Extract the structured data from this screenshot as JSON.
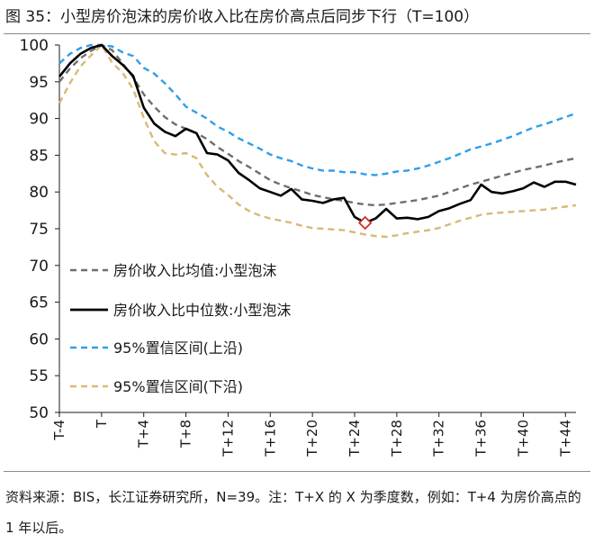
{
  "title": "图 35：小型房价泡沫的房价收入比在房价高点后同步下行（T=100）",
  "source_note": "资料来源：BIS，长江证券研究所，N=39。注：T+X 的 X 为季度数，例如：T+4 为房价高点的 1 年以后。",
  "chart_data": {
    "type": "line",
    "title": "图 35：小型房价泡沫的房价收入比在房价高点后同步下行（T=100）",
    "xlabel": "",
    "ylabel": "",
    "ylim": [
      50,
      100
    ],
    "yticks": [
      50,
      55,
      60,
      65,
      70,
      75,
      80,
      85,
      90,
      95,
      100
    ],
    "xlim": [
      -4,
      45
    ],
    "xticks": [
      -4,
      0,
      4,
      8,
      12,
      16,
      20,
      24,
      28,
      32,
      36,
      40,
      44
    ],
    "xtick_labels": [
      "T-4",
      "T",
      "T+4",
      "T+8",
      "T+12",
      "T+16",
      "T+20",
      "T+24",
      "T+28",
      "T+32",
      "T+36",
      "T+40",
      "T+44"
    ],
    "grid": false,
    "legend_position": "left-middle",
    "x": [
      -4,
      -3,
      -2,
      -1,
      0,
      1,
      2,
      3,
      4,
      5,
      6,
      7,
      8,
      9,
      10,
      11,
      12,
      13,
      14,
      15,
      16,
      17,
      18,
      19,
      20,
      21,
      22,
      23,
      24,
      25,
      26,
      27,
      28,
      29,
      30,
      31,
      32,
      33,
      34,
      35,
      36,
      37,
      38,
      39,
      40,
      41,
      42,
      43,
      44,
      45
    ],
    "series": [
      {
        "name": "房价收入比均值:小型泡沫",
        "color": "#6e6e6e",
        "style": "dashed",
        "values": [
          95,
          96.8,
          98.2,
          99.2,
          100,
          99.3,
          97.5,
          95.6,
          93.3,
          91.6,
          90.2,
          89.2,
          88.6,
          88,
          87.2,
          86.1,
          85.2,
          84.2,
          83.4,
          82.5,
          81.6,
          81,
          80.5,
          80.1,
          79.6,
          79.3,
          79,
          78.8,
          78.5,
          78.3,
          78.2,
          78.3,
          78.5,
          78.7,
          78.9,
          79.2,
          79.5,
          80,
          80.5,
          81,
          81.4,
          81.8,
          82.2,
          82.6,
          83,
          83.3,
          83.6,
          84,
          84.3,
          84.6
        ]
      },
      {
        "name": "房价收入比中位数:小型泡沫",
        "color": "#000000",
        "style": "solid",
        "values": [
          95.7,
          97.5,
          98.8,
          99.6,
          100,
          98.5,
          97.3,
          95.8,
          91.5,
          89.3,
          88.2,
          87.6,
          88.6,
          88,
          85.3,
          85.1,
          84.3,
          82.6,
          81.6,
          80.5,
          80,
          79.5,
          80.4,
          79,
          78.8,
          78.5,
          79,
          79.2,
          76.6,
          75.8,
          76.4,
          77.7,
          76.4,
          76.5,
          76.3,
          76.6,
          77.4,
          77.8,
          78.4,
          78.9,
          81,
          80,
          79.8,
          80.1,
          80.5,
          81.3,
          80.7,
          81.4,
          81.4,
          81
        ]
      },
      {
        "name": "95%置信区间(上沿)",
        "color": "#2f9fe8",
        "style": "dashed",
        "values": [
          97.5,
          98.8,
          99.6,
          100,
          100,
          99.8,
          99,
          98.5,
          96.9,
          96.1,
          94.8,
          93.3,
          91.6,
          90.8,
          90,
          88.9,
          88.2,
          87.3,
          86.6,
          85.9,
          85.1,
          84.6,
          84.2,
          83.6,
          83.2,
          82.9,
          82.9,
          82.7,
          82.7,
          82.4,
          82.3,
          82.5,
          82.8,
          82.9,
          83.2,
          83.6,
          84.1,
          84.6,
          85.2,
          85.8,
          86.2,
          86.6,
          87.1,
          87.6,
          88.2,
          88.8,
          89.2,
          89.7,
          90.2,
          90.7
        ]
      },
      {
        "name": "95%置信区间(下沿)",
        "color": "#d9b878",
        "style": "dashed",
        "values": [
          92.1,
          94.8,
          97.1,
          98.6,
          100,
          97.6,
          96.2,
          94,
          90.1,
          86.9,
          85.3,
          85.1,
          85.3,
          84.6,
          82.3,
          80.7,
          79.6,
          78.3,
          77.4,
          76.8,
          76.4,
          76.1,
          75.8,
          75.4,
          75.1,
          75,
          74.9,
          74.8,
          74.5,
          74.2,
          74,
          73.9,
          74.1,
          74.4,
          74.6,
          74.8,
          75.1,
          75.6,
          76.1,
          76.5,
          76.9,
          77.1,
          77.2,
          77.3,
          77.4,
          77.5,
          77.6,
          77.8,
          78,
          78.2
        ]
      }
    ],
    "marker": {
      "shape": "diamond",
      "x": 25,
      "y": 75.8,
      "color": "#d62b2b"
    }
  }
}
